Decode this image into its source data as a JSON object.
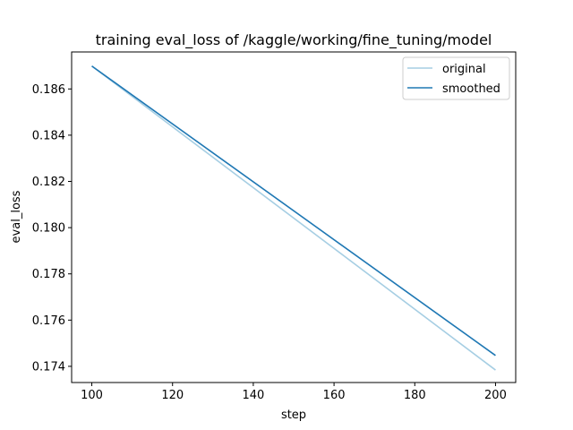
{
  "chart_data": {
    "type": "line",
    "title": "training eval_loss of /kaggle/working/fine_tuning/model",
    "xlabel": "step",
    "ylabel": "eval_loss",
    "xlim": [
      95,
      205
    ],
    "ylim": [
      0.1733,
      0.1876
    ],
    "xticks": [
      "100",
      "120",
      "140",
      "160",
      "180",
      "200"
    ],
    "yticks": [
      "0.174",
      "0.176",
      "0.178",
      "0.180",
      "0.182",
      "0.184",
      "0.186"
    ],
    "grid": false,
    "legend_position": "top-right",
    "series": [
      {
        "name": "original",
        "color": "#a6cee3",
        "x": [
          100,
          200
        ],
        "y": [
          0.18699,
          0.17384
        ]
      },
      {
        "name": "smoothed",
        "color": "#1f78b4",
        "x": [
          100,
          200
        ],
        "y": [
          0.18699,
          0.17447
        ]
      }
    ]
  }
}
